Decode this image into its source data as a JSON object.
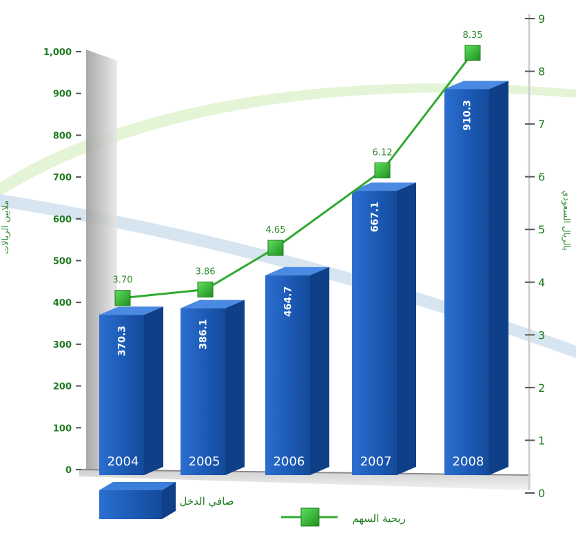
{
  "chart_data": {
    "type": "bar",
    "categories": [
      "2004",
      "2005",
      "2006",
      "2007",
      "2008"
    ],
    "series": [
      {
        "name": "صافي الدخل",
        "type": "bar",
        "axis": "left",
        "values": [
          370.3,
          386.1,
          464.7,
          667.1,
          910.3
        ],
        "labels": [
          "370.3",
          "386.1",
          "464.7",
          "667.1",
          "910.3"
        ]
      },
      {
        "name": "ربحية السهم",
        "type": "line",
        "axis": "right",
        "values": [
          3.7,
          3.86,
          4.65,
          6.12,
          8.35
        ],
        "labels": [
          "3.70",
          "3.86",
          "4.65",
          "6.12",
          "8.35"
        ]
      }
    ],
    "ylabel": "ملايين الريالات",
    "y2label": "بالريال السعودي",
    "ylim": [
      0,
      1000
    ],
    "y2lim": [
      0,
      9
    ],
    "yticks": [
      "0",
      "100",
      "200",
      "300",
      "400",
      "500",
      "600",
      "700",
      "800",
      "900",
      "1,000"
    ],
    "y2ticks": [
      "0",
      "1",
      "2",
      "3",
      "4",
      "5",
      "6",
      "7",
      "8",
      "9"
    ],
    "grid": false,
    "legend_position": "bottom",
    "colors": {
      "bar": "#1f5fb8",
      "bar_dark": "#0f3f86",
      "line": "#2fa92f",
      "marker": "#3cc43c",
      "text": "#1f7a1f"
    }
  }
}
